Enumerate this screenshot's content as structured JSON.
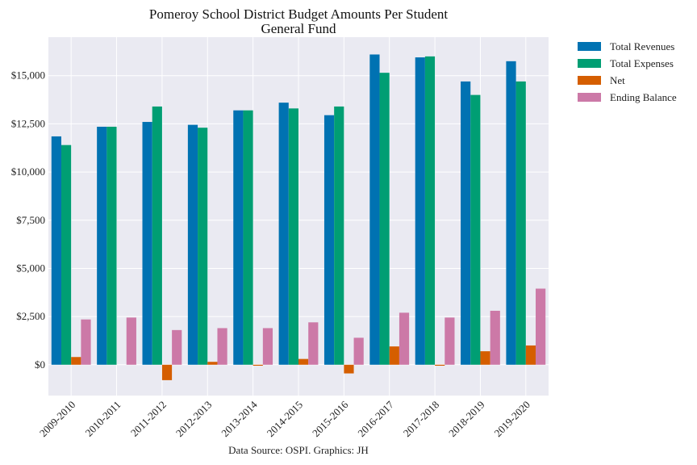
{
  "chart_data": {
    "type": "bar",
    "title": "Pomeroy School District Budget Amounts Per Student",
    "subtitle": "General Fund",
    "caption": "Data Source: OSPI. Graphics: JH",
    "ylim": [
      -1600,
      17000
    ],
    "yticks": [
      0,
      2500,
      5000,
      7500,
      10000,
      12500,
      15000
    ],
    "ytick_labels": [
      "$0",
      "$2,500",
      "$5,000",
      "$7,500",
      "$10,000",
      "$12,500",
      "$15,000"
    ],
    "grid": true,
    "legend_position": "outside-top-right",
    "categories": [
      "2009-2010",
      "2010-2011",
      "2011-2012",
      "2012-2013",
      "2013-2014",
      "2014-2015",
      "2015-2016",
      "2016-2017",
      "2017-2018",
      "2018-2019",
      "2019-2020"
    ],
    "series": [
      {
        "name": "Total Revenues",
        "color": "#0072b2",
        "values": [
          11850,
          12350,
          12600,
          12450,
          13200,
          13600,
          12950,
          16100,
          15950,
          14700,
          15750
        ]
      },
      {
        "name": "Total Expenses",
        "color": "#009e73",
        "values": [
          11400,
          12350,
          13400,
          12300,
          13200,
          13300,
          13400,
          15150,
          16000,
          14000,
          14700
        ]
      },
      {
        "name": "Net",
        "color": "#d55e00",
        "values": [
          400,
          0,
          -800,
          150,
          -50,
          300,
          -450,
          950,
          -50,
          700,
          1000
        ]
      },
      {
        "name": "Ending Balance",
        "color": "#cc79a7",
        "values": [
          2350,
          2450,
          1800,
          1900,
          1900,
          2200,
          1400,
          2700,
          2450,
          2800,
          3950
        ]
      }
    ]
  }
}
